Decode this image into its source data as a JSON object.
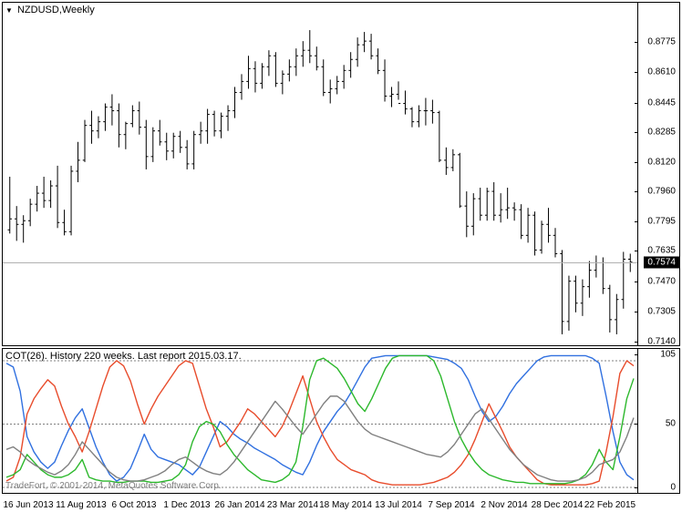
{
  "price_chart": {
    "type": "ohlc-bar",
    "title": "NZDUSD,Weekly",
    "ylim": [
      0.714,
      0.89
    ],
    "yticks": [
      0.8775,
      0.861,
      0.8445,
      0.8285,
      0.812,
      0.796,
      0.7795,
      0.7635,
      0.747,
      0.7305,
      0.714
    ],
    "ytick_labels": [
      "0.8775",
      "0.8610",
      "0.8445",
      "0.8285",
      "0.8120",
      "0.7960",
      "0.7795",
      "0.7635",
      "0.7470",
      "0.7305",
      "0.7140"
    ],
    "current_price": 0.7574,
    "current_price_label": "0.7574",
    "background_color": "#ffffff",
    "bar_color": "#000000",
    "grid_color": "#b0b0b0",
    "bars": [
      {
        "o": 0.775,
        "h": 0.804,
        "l": 0.773,
        "c": 0.781
      },
      {
        "o": 0.781,
        "h": 0.788,
        "l": 0.769,
        "c": 0.778
      },
      {
        "o": 0.778,
        "h": 0.783,
        "l": 0.768,
        "c": 0.78
      },
      {
        "o": 0.78,
        "h": 0.792,
        "l": 0.777,
        "c": 0.789
      },
      {
        "o": 0.789,
        "h": 0.799,
        "l": 0.785,
        "c": 0.795
      },
      {
        "o": 0.795,
        "h": 0.804,
        "l": 0.787,
        "c": 0.791
      },
      {
        "o": 0.791,
        "h": 0.802,
        "l": 0.787,
        "c": 0.799
      },
      {
        "o": 0.799,
        "h": 0.81,
        "l": 0.776,
        "c": 0.779
      },
      {
        "o": 0.779,
        "h": 0.786,
        "l": 0.772,
        "c": 0.774
      },
      {
        "o": 0.774,
        "h": 0.81,
        "l": 0.772,
        "c": 0.807
      },
      {
        "o": 0.807,
        "h": 0.823,
        "l": 0.801,
        "c": 0.813
      },
      {
        "o": 0.813,
        "h": 0.835,
        "l": 0.812,
        "c": 0.832
      },
      {
        "o": 0.832,
        "h": 0.84,
        "l": 0.822,
        "c": 0.829
      },
      {
        "o": 0.829,
        "h": 0.837,
        "l": 0.825,
        "c": 0.834
      },
      {
        "o": 0.834,
        "h": 0.844,
        "l": 0.829,
        "c": 0.842
      },
      {
        "o": 0.842,
        "h": 0.849,
        "l": 0.832,
        "c": 0.84
      },
      {
        "o": 0.84,
        "h": 0.844,
        "l": 0.82,
        "c": 0.827
      },
      {
        "o": 0.827,
        "h": 0.834,
        "l": 0.819,
        "c": 0.833
      },
      {
        "o": 0.833,
        "h": 0.843,
        "l": 0.831,
        "c": 0.84
      },
      {
        "o": 0.84,
        "h": 0.845,
        "l": 0.827,
        "c": 0.831
      },
      {
        "o": 0.831,
        "h": 0.835,
        "l": 0.808,
        "c": 0.815
      },
      {
        "o": 0.815,
        "h": 0.831,
        "l": 0.812,
        "c": 0.829
      },
      {
        "o": 0.829,
        "h": 0.835,
        "l": 0.821,
        "c": 0.823
      },
      {
        "o": 0.823,
        "h": 0.828,
        "l": 0.813,
        "c": 0.818
      },
      {
        "o": 0.818,
        "h": 0.828,
        "l": 0.814,
        "c": 0.826
      },
      {
        "o": 0.826,
        "h": 0.829,
        "l": 0.817,
        "c": 0.82
      },
      {
        "o": 0.82,
        "h": 0.824,
        "l": 0.808,
        "c": 0.811
      },
      {
        "o": 0.811,
        "h": 0.829,
        "l": 0.808,
        "c": 0.827
      },
      {
        "o": 0.827,
        "h": 0.834,
        "l": 0.822,
        "c": 0.829
      },
      {
        "o": 0.829,
        "h": 0.841,
        "l": 0.822,
        "c": 0.838
      },
      {
        "o": 0.838,
        "h": 0.84,
        "l": 0.826,
        "c": 0.829
      },
      {
        "o": 0.829,
        "h": 0.839,
        "l": 0.825,
        "c": 0.837
      },
      {
        "o": 0.837,
        "h": 0.843,
        "l": 0.829,
        "c": 0.84
      },
      {
        "o": 0.84,
        "h": 0.853,
        "l": 0.836,
        "c": 0.85
      },
      {
        "o": 0.85,
        "h": 0.86,
        "l": 0.846,
        "c": 0.856
      },
      {
        "o": 0.856,
        "h": 0.87,
        "l": 0.852,
        "c": 0.863
      },
      {
        "o": 0.863,
        "h": 0.867,
        "l": 0.85,
        "c": 0.855
      },
      {
        "o": 0.855,
        "h": 0.866,
        "l": 0.852,
        "c": 0.864
      },
      {
        "o": 0.864,
        "h": 0.873,
        "l": 0.859,
        "c": 0.87
      },
      {
        "o": 0.87,
        "h": 0.872,
        "l": 0.853,
        "c": 0.855
      },
      {
        "o": 0.855,
        "h": 0.862,
        "l": 0.849,
        "c": 0.86
      },
      {
        "o": 0.86,
        "h": 0.868,
        "l": 0.856,
        "c": 0.864
      },
      {
        "o": 0.864,
        "h": 0.874,
        "l": 0.859,
        "c": 0.87
      },
      {
        "o": 0.87,
        "h": 0.878,
        "l": 0.864,
        "c": 0.873
      },
      {
        "o": 0.873,
        "h": 0.884,
        "l": 0.866,
        "c": 0.87
      },
      {
        "o": 0.87,
        "h": 0.875,
        "l": 0.862,
        "c": 0.864
      },
      {
        "o": 0.864,
        "h": 0.868,
        "l": 0.848,
        "c": 0.85
      },
      {
        "o": 0.85,
        "h": 0.857,
        "l": 0.844,
        "c": 0.852
      },
      {
        "o": 0.852,
        "h": 0.859,
        "l": 0.849,
        "c": 0.856
      },
      {
        "o": 0.856,
        "h": 0.865,
        "l": 0.852,
        "c": 0.862
      },
      {
        "o": 0.862,
        "h": 0.872,
        "l": 0.858,
        "c": 0.868
      },
      {
        "o": 0.868,
        "h": 0.88,
        "l": 0.864,
        "c": 0.876
      },
      {
        "o": 0.876,
        "h": 0.883,
        "l": 0.872,
        "c": 0.878
      },
      {
        "o": 0.878,
        "h": 0.882,
        "l": 0.868,
        "c": 0.87
      },
      {
        "o": 0.87,
        "h": 0.874,
        "l": 0.86,
        "c": 0.862
      },
      {
        "o": 0.862,
        "h": 0.868,
        "l": 0.845,
        "c": 0.848
      },
      {
        "o": 0.848,
        "h": 0.853,
        "l": 0.842,
        "c": 0.849
      },
      {
        "o": 0.849,
        "h": 0.856,
        "l": 0.846,
        "c": 0.844
      },
      {
        "o": 0.844,
        "h": 0.851,
        "l": 0.838,
        "c": 0.841
      },
      {
        "o": 0.841,
        "h": 0.842,
        "l": 0.831,
        "c": 0.834
      },
      {
        "o": 0.834,
        "h": 0.843,
        "l": 0.831,
        "c": 0.84
      },
      {
        "o": 0.84,
        "h": 0.847,
        "l": 0.832,
        "c": 0.84
      },
      {
        "o": 0.84,
        "h": 0.846,
        "l": 0.833,
        "c": 0.839
      },
      {
        "o": 0.839,
        "h": 0.84,
        "l": 0.812,
        "c": 0.813
      },
      {
        "o": 0.813,
        "h": 0.82,
        "l": 0.805,
        "c": 0.809
      },
      {
        "o": 0.809,
        "h": 0.819,
        "l": 0.807,
        "c": 0.816
      },
      {
        "o": 0.816,
        "h": 0.817,
        "l": 0.787,
        "c": 0.788
      },
      {
        "o": 0.788,
        "h": 0.796,
        "l": 0.771,
        "c": 0.777
      },
      {
        "o": 0.777,
        "h": 0.795,
        "l": 0.772,
        "c": 0.792
      },
      {
        "o": 0.792,
        "h": 0.798,
        "l": 0.78,
        "c": 0.783
      },
      {
        "o": 0.783,
        "h": 0.798,
        "l": 0.78,
        "c": 0.796
      },
      {
        "o": 0.796,
        "h": 0.801,
        "l": 0.78,
        "c": 0.783
      },
      {
        "o": 0.783,
        "h": 0.795,
        "l": 0.779,
        "c": 0.786
      },
      {
        "o": 0.786,
        "h": 0.798,
        "l": 0.781,
        "c": 0.787
      },
      {
        "o": 0.787,
        "h": 0.79,
        "l": 0.78,
        "c": 0.786
      },
      {
        "o": 0.786,
        "h": 0.789,
        "l": 0.77,
        "c": 0.772
      },
      {
        "o": 0.772,
        "h": 0.787,
        "l": 0.768,
        "c": 0.783
      },
      {
        "o": 0.783,
        "h": 0.785,
        "l": 0.761,
        "c": 0.764
      },
      {
        "o": 0.764,
        "h": 0.78,
        "l": 0.762,
        "c": 0.778
      },
      {
        "o": 0.778,
        "h": 0.787,
        "l": 0.768,
        "c": 0.772
      },
      {
        "o": 0.772,
        "h": 0.776,
        "l": 0.76,
        "c": 0.762
      },
      {
        "o": 0.762,
        "h": 0.764,
        "l": 0.718,
        "c": 0.725
      },
      {
        "o": 0.725,
        "h": 0.75,
        "l": 0.72,
        "c": 0.747
      },
      {
        "o": 0.747,
        "h": 0.75,
        "l": 0.73,
        "c": 0.735
      },
      {
        "o": 0.735,
        "h": 0.748,
        "l": 0.728,
        "c": 0.744
      },
      {
        "o": 0.744,
        "h": 0.758,
        "l": 0.738,
        "c": 0.753
      },
      {
        "o": 0.753,
        "h": 0.761,
        "l": 0.749,
        "c": 0.757
      },
      {
        "o": 0.757,
        "h": 0.76,
        "l": 0.74,
        "c": 0.743
      },
      {
        "o": 0.743,
        "h": 0.745,
        "l": 0.719,
        "c": 0.726
      },
      {
        "o": 0.726,
        "h": 0.74,
        "l": 0.718,
        "c": 0.737
      },
      {
        "o": 0.737,
        "h": 0.763,
        "l": 0.732,
        "c": 0.759
      },
      {
        "o": 0.759,
        "h": 0.762,
        "l": 0.752,
        "c": 0.7574
      }
    ]
  },
  "indicator_chart": {
    "type": "line",
    "title": "COT(26). History 220 weeks. Last report 2015.03.17.",
    "ylim": [
      0,
      105
    ],
    "yticks": [
      105,
      50,
      0
    ],
    "ytick_labels": [
      "105",
      "50",
      "0"
    ],
    "dashed_levels": [
      100,
      50,
      0
    ],
    "background_color": "#ffffff",
    "line_width": 1.4,
    "series": {
      "blue": {
        "color": "#3070e0",
        "values": [
          98,
          95,
          76,
          40,
          28,
          20,
          15,
          20,
          33,
          45,
          55,
          62,
          47,
          32,
          20,
          10,
          5,
          8,
          15,
          28,
          42,
          30,
          24,
          22,
          20,
          18,
          14,
          10,
          16,
          28,
          40,
          52,
          48,
          42,
          38,
          35,
          31,
          28,
          25,
          22,
          18,
          15,
          12,
          10,
          20,
          33,
          44,
          52,
          60,
          66,
          75,
          85,
          95,
          102,
          103,
          104,
          104,
          104,
          104,
          104,
          104,
          104,
          103,
          102,
          101,
          98,
          94,
          85,
          72,
          60,
          52,
          56,
          64,
          74,
          82,
          88,
          94,
          100,
          103,
          104,
          104,
          104,
          104,
          104,
          104,
          102,
          98,
          72,
          44,
          20,
          10,
          6
        ]
      },
      "red": {
        "color": "#e84c2c",
        "values": [
          5,
          8,
          24,
          58,
          70,
          78,
          85,
          80,
          64,
          50,
          40,
          28,
          44,
          62,
          80,
          95,
          100,
          96,
          84,
          66,
          50,
          62,
          72,
          80,
          88,
          96,
          100,
          98,
          80,
          62,
          48,
          32,
          36,
          44,
          52,
          62,
          58,
          52,
          46,
          40,
          48,
          60,
          74,
          88,
          70,
          52,
          40,
          30,
          22,
          18,
          14,
          12,
          10,
          6,
          4,
          3,
          2,
          2,
          2,
          2,
          2,
          3,
          4,
          6,
          8,
          12,
          18,
          26,
          38,
          52,
          66,
          55,
          44,
          32,
          24,
          18,
          12,
          6,
          3,
          2,
          2,
          2,
          2,
          2,
          2,
          3,
          5,
          28,
          56,
          90,
          100,
          96
        ]
      },
      "green": {
        "color": "#2cb82c",
        "values": [
          8,
          10,
          14,
          26,
          20,
          14,
          10,
          8,
          8,
          10,
          14,
          22,
          8,
          6,
          5,
          5,
          4,
          4,
          5,
          5,
          5,
          4,
          4,
          5,
          6,
          10,
          18,
          36,
          48,
          52,
          50,
          44,
          34,
          26,
          20,
          14,
          10,
          6,
          5,
          4,
          6,
          10,
          20,
          48,
          85,
          100,
          102,
          98,
          94,
          86,
          76,
          66,
          60,
          70,
          82,
          94,
          102,
          104,
          104,
          104,
          104,
          104,
          100,
          88,
          70,
          52,
          38,
          28,
          20,
          14,
          10,
          8,
          6,
          5,
          4,
          4,
          3,
          3,
          3,
          3,
          3,
          3,
          4,
          6,
          10,
          18,
          30,
          20,
          14,
          40,
          70,
          86
        ]
      },
      "gray": {
        "color": "#808080",
        "values": [
          30,
          32,
          28,
          22,
          18,
          15,
          12,
          10,
          13,
          18,
          26,
          36,
          30,
          24,
          18,
          12,
          8,
          6,
          5,
          5,
          6,
          8,
          10,
          13,
          18,
          22,
          24,
          20,
          16,
          13,
          11,
          10,
          14,
          20,
          28,
          36,
          44,
          52,
          60,
          68,
          62,
          55,
          48,
          42,
          50,
          58,
          66,
          72,
          72,
          68,
          60,
          52,
          46,
          42,
          40,
          38,
          36,
          34,
          32,
          30,
          28,
          26,
          25,
          24,
          28,
          34,
          42,
          50,
          58,
          62,
          54,
          46,
          38,
          30,
          24,
          18,
          14,
          10,
          8,
          6,
          5,
          5,
          5,
          6,
          8,
          12,
          18,
          20,
          22,
          28,
          40,
          55
        ]
      }
    }
  },
  "x_axis": {
    "labels": [
      "16 Jun 2013",
      "11 Aug 2013",
      "6 Oct 2013",
      "1 Dec 2013",
      "26 Jan 2014",
      "23 Mar 2014",
      "18 May 2014",
      "13 Jul 2014",
      "7 Sep 2014",
      "2 Nov 2014",
      "28 Dec 2014",
      "22 Feb 2015"
    ]
  },
  "copyright": "TradeFort, © 2001-2014, MetaQuotes Software Corp."
}
